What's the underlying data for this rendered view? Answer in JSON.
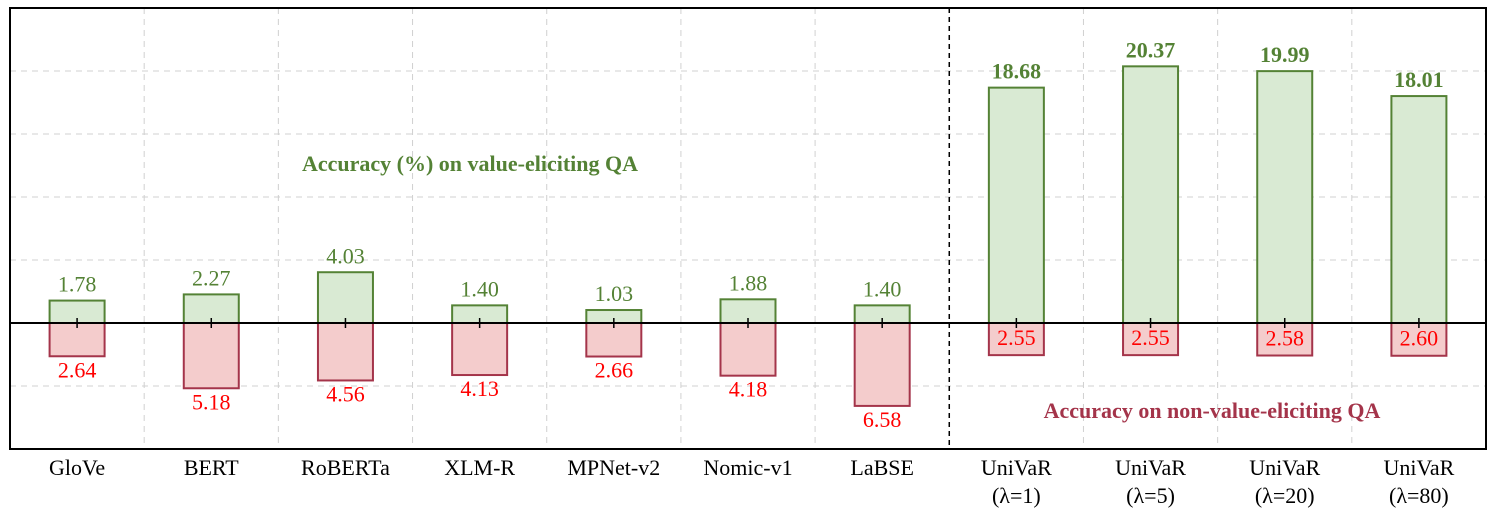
{
  "chart_data": {
    "type": "bar",
    "categories": [
      "GloVe",
      "BERT",
      "RoBERTa",
      "XLM-R",
      "MPNet-v2",
      "Nomic-v1",
      "LaBSE",
      [
        "UniVaR",
        "(λ=1)"
      ],
      [
        "UniVaR",
        "(λ=5)"
      ],
      [
        "UniVaR",
        "(λ=20)"
      ],
      [
        "UniVaR",
        "(λ=80)"
      ]
    ],
    "series": [
      {
        "name": "Accuracy (%) on value-eliciting QA",
        "color": "#548235",
        "fill": "#d9ead3",
        "direction": "up",
        "values": [
          1.78,
          2.27,
          4.03,
          1.4,
          1.03,
          1.88,
          1.4,
          18.68,
          20.37,
          19.99,
          18.01
        ],
        "value_labels": [
          "1.78",
          "2.27",
          "4.03",
          "1.40",
          "1.03",
          "1.88",
          "1.40",
          "18.68",
          "20.37",
          "19.99",
          "18.01"
        ]
      },
      {
        "name": "Accuracy on non-value-eliciting QA",
        "color": "#a4344a",
        "fill": "#f4cccc",
        "direction": "down",
        "values": [
          2.64,
          5.18,
          4.56,
          4.13,
          2.66,
          4.18,
          6.58,
          2.55,
          2.55,
          2.58,
          2.6
        ],
        "value_labels": [
          "2.64",
          "5.18",
          "4.56",
          "4.13",
          "2.66",
          "4.18",
          "6.58",
          "2.55",
          "2.55",
          "2.58",
          "2.60"
        ]
      }
    ],
    "ylim": [
      -10,
      25
    ],
    "yticks": [
      -5,
      0,
      5,
      10,
      15,
      20
    ],
    "grid": true
  }
}
